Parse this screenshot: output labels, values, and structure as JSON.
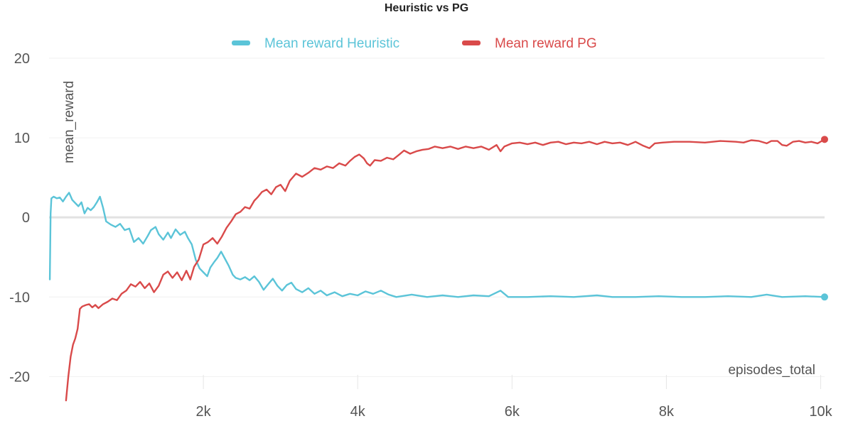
{
  "chart_data": {
    "type": "line",
    "title": "Heuristic vs PG",
    "xlabel": "episodes_total",
    "ylabel": "mean_reward",
    "xlim": [
      0,
      10050
    ],
    "ylim": [
      -23,
      20
    ],
    "x_ticks": [
      2000,
      4000,
      6000,
      8000,
      10000
    ],
    "x_tick_labels": [
      "2k",
      "4k",
      "6k",
      "8k",
      "10k"
    ],
    "y_ticks": [
      20,
      10,
      0,
      -10,
      -20
    ],
    "y_tick_labels": [
      "20",
      "10",
      "0",
      "-10",
      "-20"
    ],
    "grid": true,
    "legend_position": "top-center",
    "series": [
      {
        "name": "Mean reward Heuristic",
        "color": "#5bc4d8",
        "points": [
          [
            10,
            -7.8
          ],
          [
            20,
            0.5
          ],
          [
            30,
            2.4
          ],
          [
            60,
            2.6
          ],
          [
            100,
            2.4
          ],
          [
            140,
            2.5
          ],
          [
            180,
            2.0
          ],
          [
            220,
            2.6
          ],
          [
            260,
            3.1
          ],
          [
            300,
            2.2
          ],
          [
            340,
            1.8
          ],
          [
            380,
            1.4
          ],
          [
            420,
            1.9
          ],
          [
            460,
            0.5
          ],
          [
            500,
            1.2
          ],
          [
            540,
            0.9
          ],
          [
            580,
            1.3
          ],
          [
            620,
            1.9
          ],
          [
            660,
            2.6
          ],
          [
            700,
            1.2
          ],
          [
            740,
            -0.5
          ],
          [
            800,
            -0.9
          ],
          [
            860,
            -1.2
          ],
          [
            920,
            -0.8
          ],
          [
            980,
            -1.6
          ],
          [
            1040,
            -1.4
          ],
          [
            1100,
            -3.1
          ],
          [
            1160,
            -2.6
          ],
          [
            1220,
            -3.3
          ],
          [
            1280,
            -2.3
          ],
          [
            1320,
            -1.6
          ],
          [
            1380,
            -1.2
          ],
          [
            1420,
            -2.1
          ],
          [
            1480,
            -2.8
          ],
          [
            1540,
            -1.9
          ],
          [
            1580,
            -2.6
          ],
          [
            1640,
            -1.5
          ],
          [
            1700,
            -2.2
          ],
          [
            1760,
            -1.8
          ],
          [
            1800,
            -2.6
          ],
          [
            1850,
            -3.4
          ],
          [
            1900,
            -5.3
          ],
          [
            1950,
            -6.4
          ],
          [
            2000,
            -6.9
          ],
          [
            2050,
            -7.4
          ],
          [
            2090,
            -6.3
          ],
          [
            2140,
            -5.6
          ],
          [
            2180,
            -5.1
          ],
          [
            2230,
            -4.3
          ],
          [
            2280,
            -5.2
          ],
          [
            2330,
            -6.1
          ],
          [
            2380,
            -7.2
          ],
          [
            2420,
            -7.6
          ],
          [
            2480,
            -7.8
          ],
          [
            2540,
            -7.5
          ],
          [
            2600,
            -7.9
          ],
          [
            2660,
            -7.4
          ],
          [
            2720,
            -8.1
          ],
          [
            2780,
            -9.1
          ],
          [
            2840,
            -8.4
          ],
          [
            2900,
            -7.7
          ],
          [
            2960,
            -8.6
          ],
          [
            3020,
            -9.2
          ],
          [
            3080,
            -8.5
          ],
          [
            3140,
            -8.2
          ],
          [
            3200,
            -9.0
          ],
          [
            3280,
            -9.4
          ],
          [
            3360,
            -8.9
          ],
          [
            3440,
            -9.6
          ],
          [
            3520,
            -9.2
          ],
          [
            3600,
            -9.8
          ],
          [
            3700,
            -9.4
          ],
          [
            3800,
            -9.9
          ],
          [
            3900,
            -9.6
          ],
          [
            4000,
            -9.8
          ],
          [
            4100,
            -9.3
          ],
          [
            4200,
            -9.6
          ],
          [
            4300,
            -9.2
          ],
          [
            4400,
            -9.7
          ],
          [
            4500,
            -10.0
          ],
          [
            4700,
            -9.7
          ],
          [
            4900,
            -10.0
          ],
          [
            5100,
            -9.8
          ],
          [
            5300,
            -10.0
          ],
          [
            5500,
            -9.8
          ],
          [
            5700,
            -9.9
          ],
          [
            5850,
            -9.2
          ],
          [
            5950,
            -10.0
          ],
          [
            6200,
            -10.0
          ],
          [
            6500,
            -9.9
          ],
          [
            6800,
            -10.0
          ],
          [
            7100,
            -9.8
          ],
          [
            7300,
            -10.0
          ],
          [
            7600,
            -10.0
          ],
          [
            7900,
            -9.9
          ],
          [
            8200,
            -10.0
          ],
          [
            8500,
            -10.0
          ],
          [
            8800,
            -9.9
          ],
          [
            9100,
            -10.0
          ],
          [
            9300,
            -9.7
          ],
          [
            9500,
            -10.0
          ],
          [
            9800,
            -9.9
          ],
          [
            10050,
            -10.0
          ]
        ]
      },
      {
        "name": "Mean reward PG",
        "color": "#d94a4a",
        "points": [
          [
            220,
            -23.0
          ],
          [
            250,
            -20.0
          ],
          [
            280,
            -17.5
          ],
          [
            310,
            -16.0
          ],
          [
            340,
            -15.2
          ],
          [
            370,
            -14.0
          ],
          [
            400,
            -11.5
          ],
          [
            430,
            -11.2
          ],
          [
            480,
            -11.0
          ],
          [
            520,
            -10.9
          ],
          [
            560,
            -11.3
          ],
          [
            600,
            -11.0
          ],
          [
            640,
            -11.4
          ],
          [
            700,
            -10.9
          ],
          [
            760,
            -10.6
          ],
          [
            820,
            -10.2
          ],
          [
            880,
            -10.4
          ],
          [
            940,
            -9.6
          ],
          [
            1000,
            -9.2
          ],
          [
            1060,
            -8.4
          ],
          [
            1120,
            -8.7
          ],
          [
            1180,
            -8.1
          ],
          [
            1240,
            -8.9
          ],
          [
            1300,
            -8.3
          ],
          [
            1360,
            -9.4
          ],
          [
            1420,
            -8.6
          ],
          [
            1480,
            -7.2
          ],
          [
            1540,
            -6.8
          ],
          [
            1600,
            -7.6
          ],
          [
            1660,
            -6.9
          ],
          [
            1720,
            -7.9
          ],
          [
            1780,
            -6.7
          ],
          [
            1830,
            -7.8
          ],
          [
            1880,
            -6.2
          ],
          [
            1940,
            -5.3
          ],
          [
            2000,
            -3.4
          ],
          [
            2060,
            -3.1
          ],
          [
            2120,
            -2.6
          ],
          [
            2180,
            -3.3
          ],
          [
            2240,
            -2.4
          ],
          [
            2300,
            -1.3
          ],
          [
            2360,
            -0.5
          ],
          [
            2420,
            0.4
          ],
          [
            2480,
            0.7
          ],
          [
            2540,
            1.3
          ],
          [
            2600,
            1.1
          ],
          [
            2660,
            2.1
          ],
          [
            2700,
            2.5
          ],
          [
            2760,
            3.2
          ],
          [
            2820,
            3.5
          ],
          [
            2880,
            2.9
          ],
          [
            2940,
            3.8
          ],
          [
            3000,
            4.1
          ],
          [
            3060,
            3.3
          ],
          [
            3120,
            4.6
          ],
          [
            3200,
            5.5
          ],
          [
            3280,
            5.1
          ],
          [
            3360,
            5.6
          ],
          [
            3440,
            6.2
          ],
          [
            3520,
            6.0
          ],
          [
            3600,
            6.4
          ],
          [
            3680,
            6.2
          ],
          [
            3760,
            6.8
          ],
          [
            3840,
            6.5
          ],
          [
            3900,
            7.1
          ],
          [
            3960,
            7.6
          ],
          [
            4020,
            7.9
          ],
          [
            4080,
            7.4
          ],
          [
            4120,
            6.8
          ],
          [
            4160,
            6.5
          ],
          [
            4220,
            7.2
          ],
          [
            4300,
            7.1
          ],
          [
            4380,
            7.5
          ],
          [
            4460,
            7.3
          ],
          [
            4540,
            7.9
          ],
          [
            4600,
            8.4
          ],
          [
            4680,
            8.0
          ],
          [
            4760,
            8.3
          ],
          [
            4840,
            8.5
          ],
          [
            4920,
            8.6
          ],
          [
            5000,
            8.9
          ],
          [
            5100,
            8.7
          ],
          [
            5200,
            8.9
          ],
          [
            5300,
            8.6
          ],
          [
            5400,
            8.9
          ],
          [
            5500,
            8.7
          ],
          [
            5600,
            8.9
          ],
          [
            5700,
            8.5
          ],
          [
            5800,
            9.1
          ],
          [
            5850,
            8.3
          ],
          [
            5900,
            8.9
          ],
          [
            6000,
            9.3
          ],
          [
            6100,
            9.4
          ],
          [
            6200,
            9.2
          ],
          [
            6300,
            9.4
          ],
          [
            6400,
            9.1
          ],
          [
            6500,
            9.4
          ],
          [
            6600,
            9.5
          ],
          [
            6700,
            9.2
          ],
          [
            6800,
            9.4
          ],
          [
            6900,
            9.3
          ],
          [
            7000,
            9.5
          ],
          [
            7100,
            9.2
          ],
          [
            7200,
            9.5
          ],
          [
            7300,
            9.3
          ],
          [
            7400,
            9.4
          ],
          [
            7500,
            9.1
          ],
          [
            7600,
            9.5
          ],
          [
            7700,
            9.0
          ],
          [
            7780,
            8.7
          ],
          [
            7850,
            9.3
          ],
          [
            7950,
            9.4
          ],
          [
            8100,
            9.5
          ],
          [
            8300,
            9.5
          ],
          [
            8500,
            9.4
          ],
          [
            8700,
            9.6
          ],
          [
            8900,
            9.5
          ],
          [
            9000,
            9.4
          ],
          [
            9100,
            9.7
          ],
          [
            9200,
            9.6
          ],
          [
            9300,
            9.3
          ],
          [
            9360,
            9.6
          ],
          [
            9440,
            9.6
          ],
          [
            9500,
            9.1
          ],
          [
            9560,
            9.0
          ],
          [
            9640,
            9.5
          ],
          [
            9720,
            9.6
          ],
          [
            9800,
            9.4
          ],
          [
            9880,
            9.5
          ],
          [
            9960,
            9.3
          ],
          [
            10050,
            9.8
          ]
        ]
      }
    ]
  }
}
